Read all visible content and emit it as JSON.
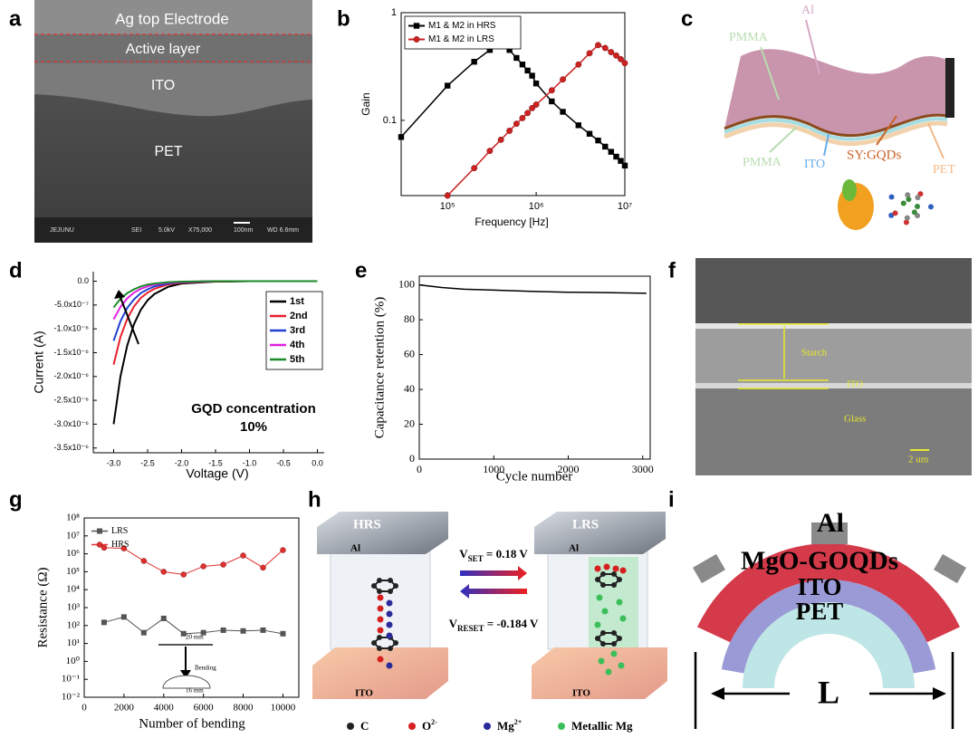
{
  "panel_labels": [
    "a",
    "b",
    "c",
    "d",
    "e",
    "f",
    "g",
    "h",
    "i"
  ],
  "chart_data": [
    {
      "type": "line",
      "xscale": "log",
      "yscale": "log",
      "xlabel": "Frequency [Hz]",
      "ylabel": "Gain",
      "x": [
        30000,
        100000,
        200000,
        300000,
        400000,
        500000,
        600000,
        700000,
        800000,
        900000,
        1000000,
        1500000,
        2000000,
        3000000,
        4000000,
        5000000,
        6000000,
        7000000,
        8000000,
        9000000,
        10000000
      ],
      "xlim": [
        30000,
        10000000
      ],
      "xticks": [
        {
          "value": 100000,
          "label": "10⁵"
        },
        {
          "value": 1000000,
          "label": "10⁶"
        },
        {
          "value": 10000000,
          "label": "10⁷"
        }
      ],
      "ylim": [
        0.02,
        1
      ],
      "yticks": [
        0.1,
        1
      ],
      "legend": "upper left",
      "series": [
        {
          "name": "M1 & M2 in HRS",
          "color": "#000000",
          "marker": "square",
          "values": [
            0.07,
            0.21,
            0.35,
            0.45,
            0.55,
            0.45,
            0.38,
            0.33,
            0.29,
            0.26,
            0.22,
            0.15,
            0.12,
            0.09,
            0.075,
            0.065,
            0.057,
            0.051,
            0.046,
            0.042,
            0.038
          ]
        },
        {
          "name": "M1 & M2 in LRS",
          "color": "#cc2222",
          "marker": "circle",
          "values": [
            null,
            0.02,
            0.036,
            0.052,
            0.066,
            0.08,
            0.093,
            0.105,
            0.117,
            0.13,
            0.14,
            0.19,
            0.24,
            0.33,
            0.42,
            0.5,
            0.47,
            0.43,
            0.4,
            0.37,
            0.34
          ]
        }
      ]
    },
    {
      "type": "line",
      "xlabel": "Voltage (V)",
      "ylabel": "Current (A)",
      "x": [
        -3,
        -2.9,
        -2.8,
        -2.7,
        -2.6,
        -2.5,
        -2.4,
        -2.2,
        -2,
        -1.5,
        -1,
        -0.5,
        0
      ],
      "xlim": [
        -3.3,
        0.1
      ],
      "xticks": [
        {
          "value": -3,
          "label": "-3.0"
        },
        {
          "value": -2.5,
          "label": "-2.5"
        },
        {
          "value": -2,
          "label": "-2.0"
        },
        {
          "value": -1.5,
          "label": "-1.5"
        },
        {
          "value": -1,
          "label": "-1.0"
        },
        {
          "value": -0.5,
          "label": "-0.5"
        },
        {
          "value": 0,
          "label": "0.0"
        }
      ],
      "ylim": [
        -3.6e-06,
        2e-07
      ],
      "yticks": [
        {
          "value": 0,
          "label": "0.0"
        },
        {
          "value": -5e-07,
          "label": "-5.0x10⁻⁷"
        },
        {
          "value": -1e-06,
          "label": "-1.0x10⁻⁶"
        },
        {
          "value": -1.5e-06,
          "label": "-1.5x10⁻⁶"
        },
        {
          "value": -2e-06,
          "label": "-2.0x10⁻⁶"
        },
        {
          "value": -2.5e-06,
          "label": "-2.5x10⁻⁶"
        },
        {
          "value": -3e-06,
          "label": "-3.0x10⁻⁶"
        },
        {
          "value": -3.5e-06,
          "label": "-3.5x10⁻⁶"
        }
      ],
      "legend": "upper right",
      "annotations": [
        "GQD concentration",
        "10%"
      ],
      "series": [
        {
          "name": "1st",
          "color": "#000000",
          "values": [
            -3e-06,
            -2e-06,
            -1.35e-06,
            -9e-07,
            -6e-07,
            -4e-07,
            -2.7e-07,
            -1.2e-07,
            -5e-08,
            -1e-08,
            0,
            0,
            0
          ]
        },
        {
          "name": "2nd",
          "color": "#e8202a",
          "values": [
            -1.75e-06,
            -1.17e-06,
            -7.9e-07,
            -5.3e-07,
            -3.5e-07,
            -2.4e-07,
            -1.6e-07,
            -7e-08,
            -3e-08,
            -5e-09,
            0,
            0,
            0
          ]
        },
        {
          "name": "3rd",
          "color": "#1f3fd0",
          "values": [
            -1.25e-06,
            -8.4e-07,
            -5.6e-07,
            -3.8e-07,
            -2.5e-07,
            -1.7e-07,
            -1.1e-07,
            -5e-08,
            -2e-08,
            0,
            0,
            0,
            0
          ]
        },
        {
          "name": "4th",
          "color": "#e020e0",
          "values": [
            -8e-07,
            -5.4e-07,
            -3.6e-07,
            -2.4e-07,
            -1.6e-07,
            -1.1e-07,
            -7e-08,
            -3e-08,
            -1.5e-08,
            0,
            0,
            0,
            0
          ]
        },
        {
          "name": "5th",
          "color": "#1a8a2a",
          "values": [
            -5.5e-07,
            -3.7e-07,
            -2.5e-07,
            -1.7e-07,
            -1.1e-07,
            -7e-08,
            -5e-08,
            -2e-08,
            -1e-08,
            0,
            0,
            0,
            0
          ]
        }
      ]
    },
    {
      "type": "line",
      "xlabel": "Cycle number",
      "ylabel": "Capacitance retention (%)",
      "x": [
        0,
        300,
        600,
        1000,
        1500,
        2000,
        2500,
        3050
      ],
      "xlim": [
        0,
        3100
      ],
      "xticks": [
        0,
        1000,
        2000,
        3000
      ],
      "ylim": [
        0,
        105
      ],
      "yticks": [
        0,
        20,
        40,
        60,
        80,
        100
      ],
      "series": [
        {
          "name": null,
          "color": "#000000",
          "values": [
            100,
            98.5,
            97.5,
            97,
            96.3,
            95.8,
            95.6,
            95.2
          ]
        }
      ]
    },
    {
      "type": "line",
      "yscale": "log",
      "xlabel": "Number of bending",
      "ylabel": "Resistance (Ω)",
      "x": [
        1000,
        2000,
        3000,
        4000,
        5000,
        6000,
        7000,
        8000,
        9000,
        10000
      ],
      "xlim": [
        0,
        10800
      ],
      "xticks": [
        0,
        2000,
        4000,
        6000,
        8000,
        10000
      ],
      "ylim": [
        0.01,
        100000000
      ],
      "yticks": [
        {
          "value": 0.01,
          "label": "10⁻²"
        },
        {
          "value": 0.1,
          "label": "10⁻¹"
        },
        {
          "value": 1,
          "label": "10⁰"
        },
        {
          "value": 10,
          "label": "10¹"
        },
        {
          "value": 100,
          "label": "10²"
        },
        {
          "value": 1000,
          "label": "10³"
        },
        {
          "value": 10000,
          "label": "10⁴"
        },
        {
          "value": 100000,
          "label": "10⁵"
        },
        {
          "value": 1000000,
          "label": "10⁶"
        },
        {
          "value": 10000000,
          "label": "10⁷"
        },
        {
          "value": 100000000,
          "label": "10⁸"
        }
      ],
      "legend": "upper left",
      "annotations": [
        "Bending",
        "20 mm",
        "16 mm"
      ],
      "series": [
        {
          "name": "LRS",
          "color": "#555555",
          "marker": "square",
          "values": [
            150,
            300,
            40,
            250,
            35,
            40,
            55,
            50,
            55,
            35
          ]
        },
        {
          "name": "HRS",
          "color": "#e03030",
          "marker": "circle",
          "values": [
            2200000,
            2000000,
            400000,
            100000,
            70000,
            200000,
            250000,
            800000,
            170000,
            1600000
          ]
        }
      ]
    }
  ],
  "panel_a": {
    "layers": [
      "Ag top Electrode",
      "Active layer",
      "ITO",
      "PET"
    ],
    "footer": [
      "JEJUNU",
      "SEI",
      "5.0kV",
      "X75,000",
      "100nm",
      "WD 6.6mm"
    ]
  },
  "panel_c": {
    "labels": [
      "Al",
      "PMMA",
      "PMMA",
      "ITO",
      "SY:GQDs",
      "PET"
    ]
  },
  "panel_f": {
    "labels": [
      "Starch",
      "ITO",
      "Glass"
    ],
    "scale_bar": "2 um"
  },
  "panel_h": {
    "states": [
      "HRS",
      "LRS"
    ],
    "top": [
      "Al",
      "Al"
    ],
    "bottom": [
      "ITO",
      "ITO"
    ],
    "set": {
      "v": "V",
      "sub": "SET",
      "rest": " = 0.18 V"
    },
    "reset": {
      "v": "V",
      "sub": "RESET",
      "rest": " = -0.184 V"
    },
    "legend": [
      {
        "base": "C",
        "sup": null
      },
      {
        "base": "O",
        "sup": "2-"
      },
      {
        "base": "Mg",
        "sup": "2+"
      },
      {
        "base": "Metallic Mg",
        "sup": null
      }
    ]
  },
  "panel_i": {
    "labels": [
      "Al",
      "MgO-GOQDs",
      "ITO",
      "PET"
    ],
    "dimension": "L"
  }
}
